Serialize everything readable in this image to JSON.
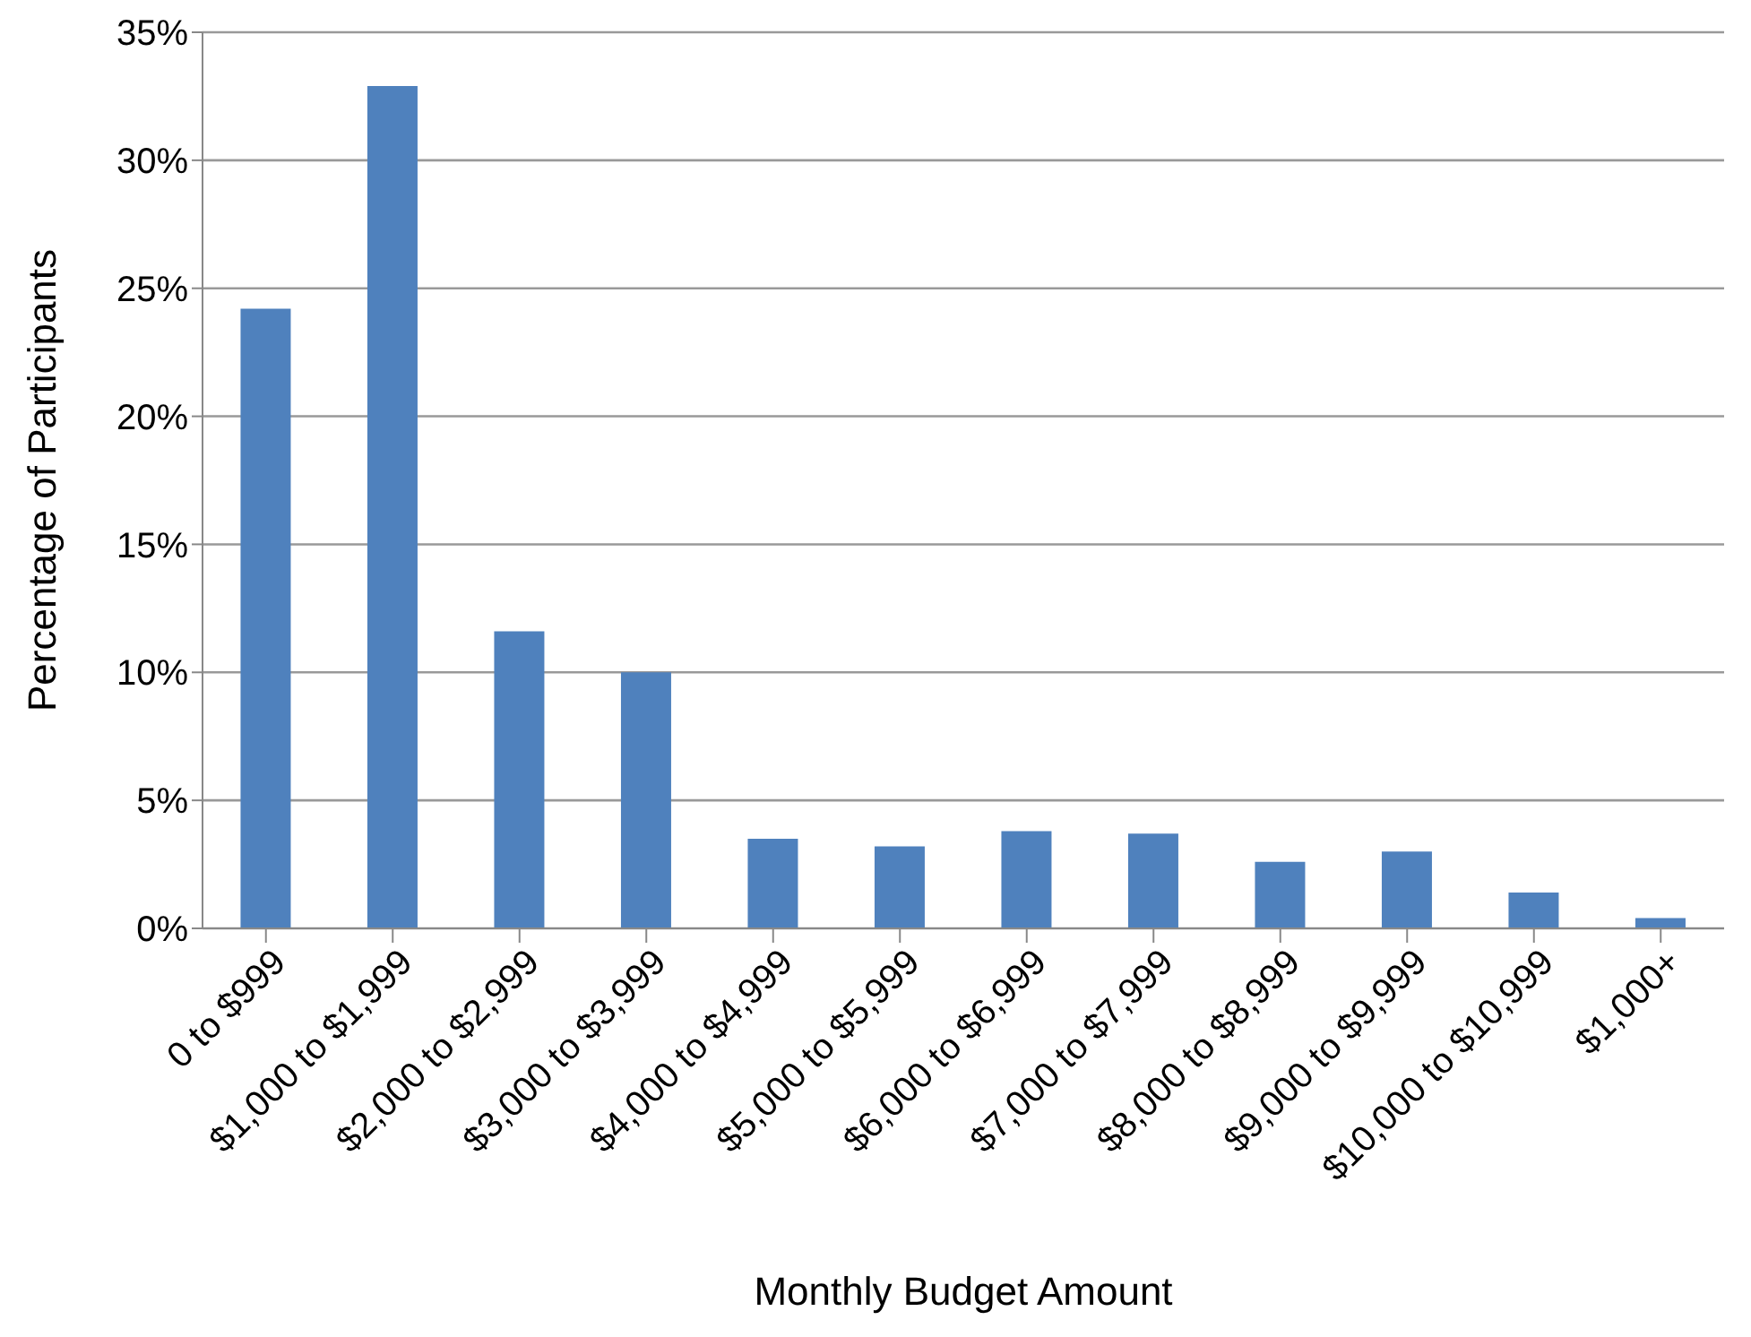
{
  "chart_data": {
    "type": "bar",
    "xlabel": "Monthly Budget Amount",
    "ylabel": "Percentage of Participants",
    "categories": [
      "0 to $999",
      "$1,000 to $1,999",
      "$2,000 to $2,999",
      "$3,000 to $3,999",
      "$4,000 to $4,999",
      "$5,000 to $5,999",
      "$6,000 to $6,999",
      "$7,000 to $7,999",
      "$8,000 to $8,999",
      "$9,000 to $9,999",
      "$10,000 to $10,999",
      "$1,000+"
    ],
    "values": [
      24.2,
      32.9,
      11.6,
      10.0,
      3.5,
      3.2,
      3.8,
      3.7,
      2.6,
      3.0,
      1.4,
      0.4
    ],
    "color": "#4f81bd",
    "ylim": [
      0,
      35
    ],
    "yticks": [
      {
        "value": 0,
        "label": "0%"
      },
      {
        "value": 5,
        "label": "5%"
      },
      {
        "value": 10,
        "label": "10%"
      },
      {
        "value": 15,
        "label": "15%"
      },
      {
        "value": 20,
        "label": "20%"
      },
      {
        "value": 25,
        "label": "25%"
      },
      {
        "value": 30,
        "label": "30%"
      },
      {
        "value": 35,
        "label": "35%"
      }
    ],
    "grid": "y",
    "legend": false
  }
}
